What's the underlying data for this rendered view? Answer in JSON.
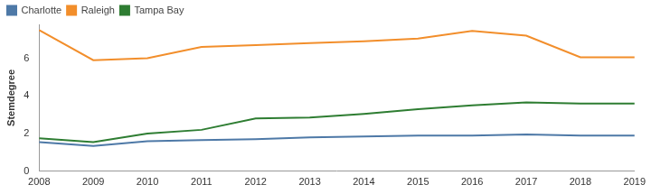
{
  "chart_data": {
    "type": "line",
    "y_label": "Stemdegree",
    "categories": [
      "2008",
      "2009",
      "2010",
      "2011",
      "2012",
      "2013",
      "2014",
      "2015",
      "2016",
      "2017",
      "2018",
      "2019"
    ],
    "series": [
      {
        "name": "Charlotte",
        "color": "#4e79a7",
        "values": [
          1.55,
          1.35,
          1.6,
          1.65,
          1.7,
          1.8,
          1.85,
          1.9,
          1.9,
          1.95,
          1.9,
          1.9
        ]
      },
      {
        "name": "Raleigh",
        "color": "#f28e2b",
        "values": [
          7.5,
          5.9,
          6.0,
          6.6,
          6.7,
          6.8,
          6.9,
          7.05,
          7.45,
          7.2,
          6.05,
          6.05
        ]
      },
      {
        "name": "Tampa Bay",
        "color": "#2e7d32",
        "values": [
          1.75,
          1.55,
          2.0,
          2.2,
          2.8,
          2.85,
          3.05,
          3.3,
          3.5,
          3.65,
          3.6,
          3.6
        ]
      }
    ],
    "ylim": [
      0,
      7.8
    ],
    "yticks": [
      0,
      2,
      4,
      6
    ],
    "grid": false,
    "legend": "top-left"
  }
}
